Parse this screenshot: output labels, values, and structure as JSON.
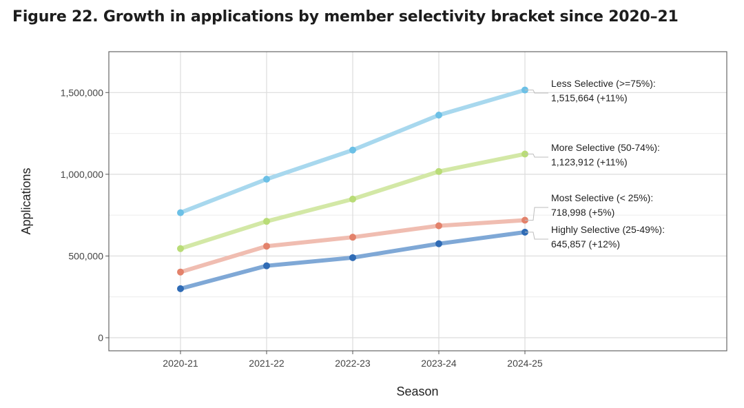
{
  "figure_title": "Figure 22. Growth in applications by member selectivity bracket since 2020–21",
  "chart_data": {
    "type": "line",
    "title": "Figure 22. Growth in applications by member selectivity bracket since 2020–21",
    "xlabel": "Season",
    "ylabel": "Applications",
    "categories": [
      "2020-21",
      "2021-22",
      "2022-23",
      "2023-24",
      "2024-25"
    ],
    "ylim": [
      -80000,
      1750000
    ],
    "y_ticks": [
      0,
      500000,
      1000000,
      1500000
    ],
    "y_tick_labels": [
      "0",
      "500,000",
      "1,000,000",
      "1,500,000"
    ],
    "grid": true,
    "series": [
      {
        "name": "Less Selective (>=75%)",
        "values": [
          765000,
          970000,
          1148000,
          1362000,
          1515664
        ],
        "line_color": "#a8d8ee",
        "point_color": "#6cc0e6",
        "label_line1": "Less Selective (>=75%):",
        "label_line2": "1,515,664 (+11%)"
      },
      {
        "name": "More Selective (50-74%)",
        "values": [
          545000,
          712000,
          848000,
          1017000,
          1123912
        ],
        "line_color": "#d3e8a6",
        "point_color": "#b9dc77",
        "label_line1": "More Selective (50-74%):",
        "label_line2": "1,123,912 (+11%)"
      },
      {
        "name": "Most Selective (< 25%)",
        "values": [
          402000,
          560000,
          615000,
          685000,
          718998
        ],
        "line_color": "#f0bdb1",
        "point_color": "#e3826b",
        "label_line1": "Most Selective (< 25%):",
        "label_line2": "718,998 (+5%)"
      },
      {
        "name": "Highly Selective (25-49%)",
        "values": [
          300000,
          440000,
          490000,
          575000,
          645857
        ],
        "line_color": "#7fa8d6",
        "point_color": "#2f6bb5",
        "label_line1": "Highly Selective (25-49%):",
        "label_line2": "645,857 (+12%)"
      }
    ]
  }
}
